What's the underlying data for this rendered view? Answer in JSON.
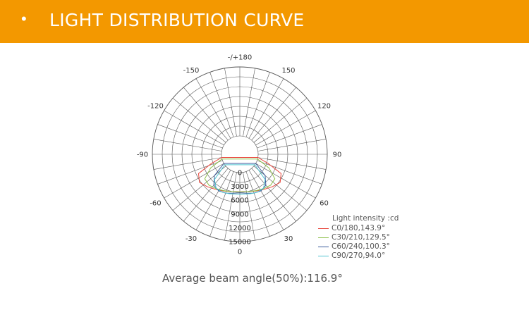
{
  "header": {
    "bullet": "•",
    "title": "LIGHT DISTRIBUTION CURVE"
  },
  "colors": {
    "header_bg": "#f39800",
    "grid": "#555555"
  },
  "chart_data": {
    "type": "polar",
    "angle_labels": [
      {
        "angle": 180,
        "text": "-/+180"
      },
      {
        "angle": 150,
        "text": "150"
      },
      {
        "angle": 120,
        "text": "120"
      },
      {
        "angle": 90,
        "text": "90"
      },
      {
        "angle": 60,
        "text": "60"
      },
      {
        "angle": 30,
        "text": "30"
      },
      {
        "angle": 0,
        "text": "0"
      },
      {
        "angle": -30,
        "text": "-30"
      },
      {
        "angle": -60,
        "text": "-60"
      },
      {
        "angle": -90,
        "text": "-90"
      },
      {
        "angle": -120,
        "text": "-120"
      },
      {
        "angle": -150,
        "text": "-150"
      }
    ],
    "radial_ticks": [
      0,
      3000,
      6000,
      9000,
      12000,
      15000
    ],
    "r_min": -3000,
    "r_max": 15000,
    "legend_title": "Light intensity :cd",
    "series": [
      {
        "name": "C0/180,143.9°",
        "color": "#e8463c",
        "angles": [
          -80,
          -72,
          -65,
          -55,
          -45,
          -35,
          -25,
          -15,
          0,
          15,
          25,
          35,
          45,
          55,
          65,
          72,
          80
        ],
        "values": [
          0,
          2500,
          5900,
          6700,
          6000,
          5300,
          4800,
          4400,
          4200,
          4400,
          4800,
          5300,
          6000,
          6700,
          5900,
          2500,
          0
        ]
      },
      {
        "name": "C30/210,129.5°",
        "color": "#8cc04a",
        "angles": [
          -75,
          -65,
          -55,
          -45,
          -35,
          -25,
          -15,
          0,
          15,
          25,
          35,
          45,
          55,
          65,
          75
        ],
        "values": [
          0,
          3000,
          5300,
          5500,
          5100,
          4700,
          4400,
          4200,
          4400,
          4700,
          5100,
          5500,
          5300,
          3000,
          0
        ]
      },
      {
        "name": "C60/240,100.3°",
        "color": "#3a5a9c",
        "angles": [
          -60,
          -50,
          -40,
          -30,
          -20,
          -10,
          0,
          10,
          20,
          30,
          40,
          50,
          60
        ],
        "values": [
          0,
          3200,
          4800,
          5200,
          5000,
          4600,
          4400,
          4600,
          5000,
          5200,
          4800,
          3200,
          0
        ]
      },
      {
        "name": "C90/270,94.0°",
        "color": "#4fc3d0",
        "angles": [
          -55,
          -45,
          -35,
          -25,
          -15,
          0,
          15,
          25,
          35,
          45,
          55
        ],
        "values": [
          0,
          3800,
          5000,
          5100,
          4900,
          4700,
          4900,
          5100,
          5000,
          3800,
          0
        ]
      }
    ]
  },
  "footer": {
    "text": "Average beam angle(50%):116.9°"
  }
}
